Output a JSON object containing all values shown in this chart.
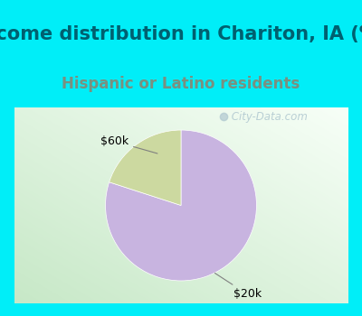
{
  "title": "Income distribution in Chariton, IA (%)",
  "subtitle": "Hispanic or Latino residents",
  "slices": [
    80.0,
    20.0
  ],
  "labels": [
    "$20k",
    "$60k"
  ],
  "colors": [
    "#c8b4e0",
    "#ccd9a0"
  ],
  "startangle": 90,
  "counterclock": false,
  "title_fontsize": 15,
  "subtitle_fontsize": 12,
  "title_color": "#006070",
  "subtitle_color": "#7a9080",
  "label_fontsize": 9,
  "bg_color": "#00eef8",
  "chart_bg_top": "#f5ffff",
  "chart_bg_bottom": "#c8e8c8",
  "watermark": " City-Data.com",
  "watermark_color": "#b0c8d0",
  "annotation_color": "#808080"
}
